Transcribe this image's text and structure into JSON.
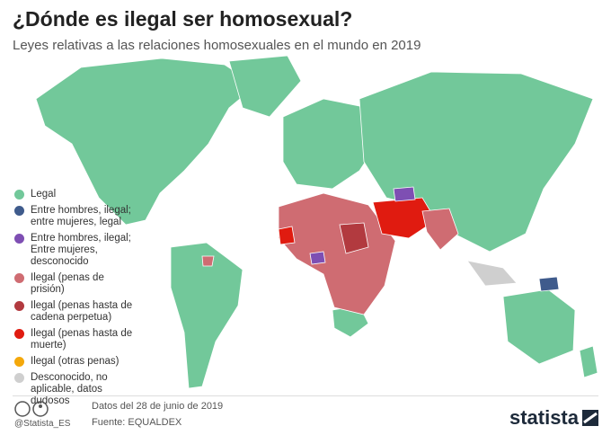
{
  "header": {
    "title": "¿Dónde es ilegal ser homosexual?",
    "subtitle": "Leyes relativas a las relaciones homosexuales en el mundo en 2019"
  },
  "legend": {
    "items": [
      {
        "label": "Legal",
        "color": "#72c89a"
      },
      {
        "label": "Entre hombres, ilegal; entre mujeres, legal",
        "color": "#3f5b8c"
      },
      {
        "label": "Entre hombres, ilegal; Entre mujeres, desconocido",
        "color": "#7e4fb3"
      },
      {
        "label": "Ilegal (penas de prisión)",
        "color": "#cf6c72"
      },
      {
        "label": "Ilegal (penas hasta de cadena perpetua)",
        "color": "#b23a3f"
      },
      {
        "label": "Ilegal (penas hasta de muerte)",
        "color": "#e01b10"
      },
      {
        "label": "Ilegal (otras penas)",
        "color": "#f4a80b"
      },
      {
        "label": "Desconocido, no aplicable, datos dudosos",
        "color": "#cfcfcf"
      }
    ]
  },
  "footer": {
    "handle": "@Statista_ES",
    "date": "Datos del 28 de junio de 2019",
    "source": "Fuente: EQUALDEX",
    "brand": "statista"
  }
}
